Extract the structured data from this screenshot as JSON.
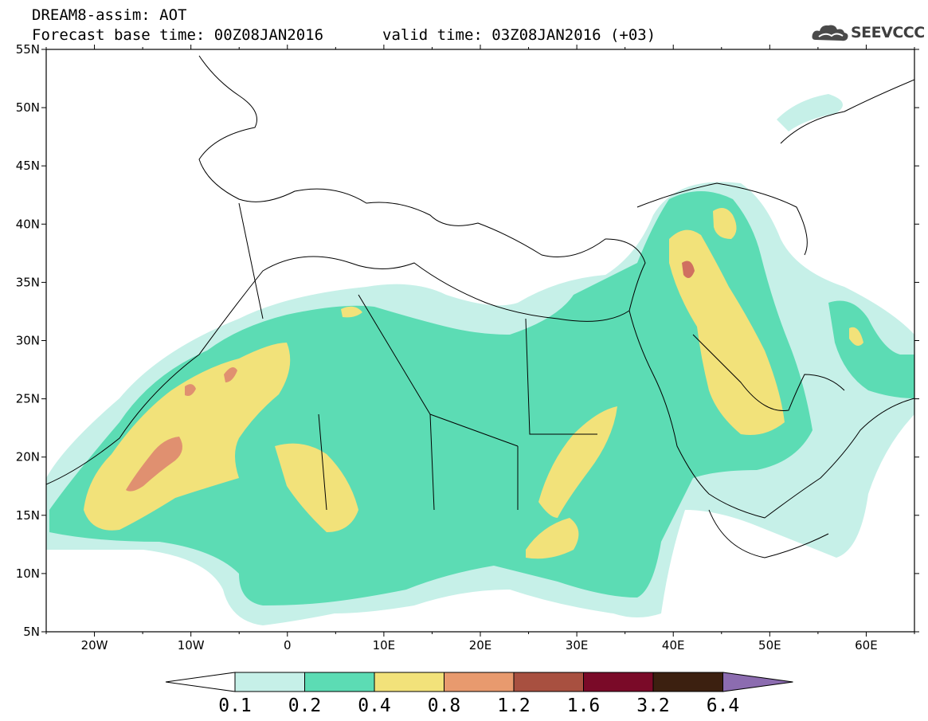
{
  "header": {
    "title": "DREAM8-assim: AOT",
    "base_time": "Forecast base time: 00Z08JAN2016",
    "valid_time": "valid time: 03Z08JAN2016 (+03)",
    "logo_text": "SEEVCCC",
    "logo_icon": "cloud-icon"
  },
  "map": {
    "projection": "cylindrical equidistant",
    "lon_range": [
      -25,
      65
    ],
    "lat_range": [
      5,
      55
    ],
    "lat_ticks": [
      "55N",
      "50N",
      "45N",
      "40N",
      "35N",
      "30N",
      "25N",
      "20N",
      "15N",
      "10N",
      "5N"
    ],
    "lon_ticks": [
      "20W",
      "10W",
      "0",
      "10E",
      "20E",
      "30E",
      "40E",
      "50E",
      "60E"
    ],
    "variable": "Aerosol optical thickness (AOT)"
  },
  "colorbar": {
    "levels": [
      "0.1",
      "0.2",
      "0.4",
      "0.8",
      "1.2",
      "1.6",
      "3.2",
      "6.4"
    ],
    "colors": [
      "#ffffff",
      "#c6f0e8",
      "#5cdcb4",
      "#f2e27a",
      "#e89a6e",
      "#a85040",
      "#7a0a28",
      "#3c2010",
      "#8c6cb0"
    ]
  }
}
